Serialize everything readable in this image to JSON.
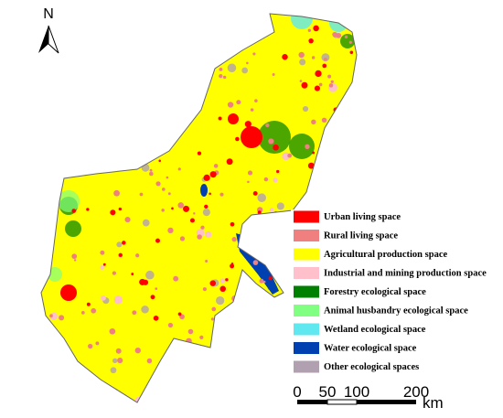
{
  "north_arrow": {
    "label": "N"
  },
  "legend": {
    "items": [
      {
        "label": "Urban living space",
        "color": "#ff0000"
      },
      {
        "label": "Rural living space",
        "color": "#f08080"
      },
      {
        "label": "Agricultural production space",
        "color": "#ffff00"
      },
      {
        "label": "Industrial and mining production space",
        "color": "#ffc0cb"
      },
      {
        "label": "Forestry ecological space",
        "color": "#008000"
      },
      {
        "label": "Animal husbandry ecological space",
        "color": "#80ff80"
      },
      {
        "label": "Wetland ecological space",
        "color": "#60e8f0"
      },
      {
        "label": "Water ecological space",
        "color": "#0040b0"
      },
      {
        "label": "Other ecological spaces",
        "color": "#b0a0b0"
      }
    ]
  },
  "scale_bar": {
    "labels": [
      "0",
      "50",
      "100",
      "200"
    ],
    "unit": "km"
  }
}
